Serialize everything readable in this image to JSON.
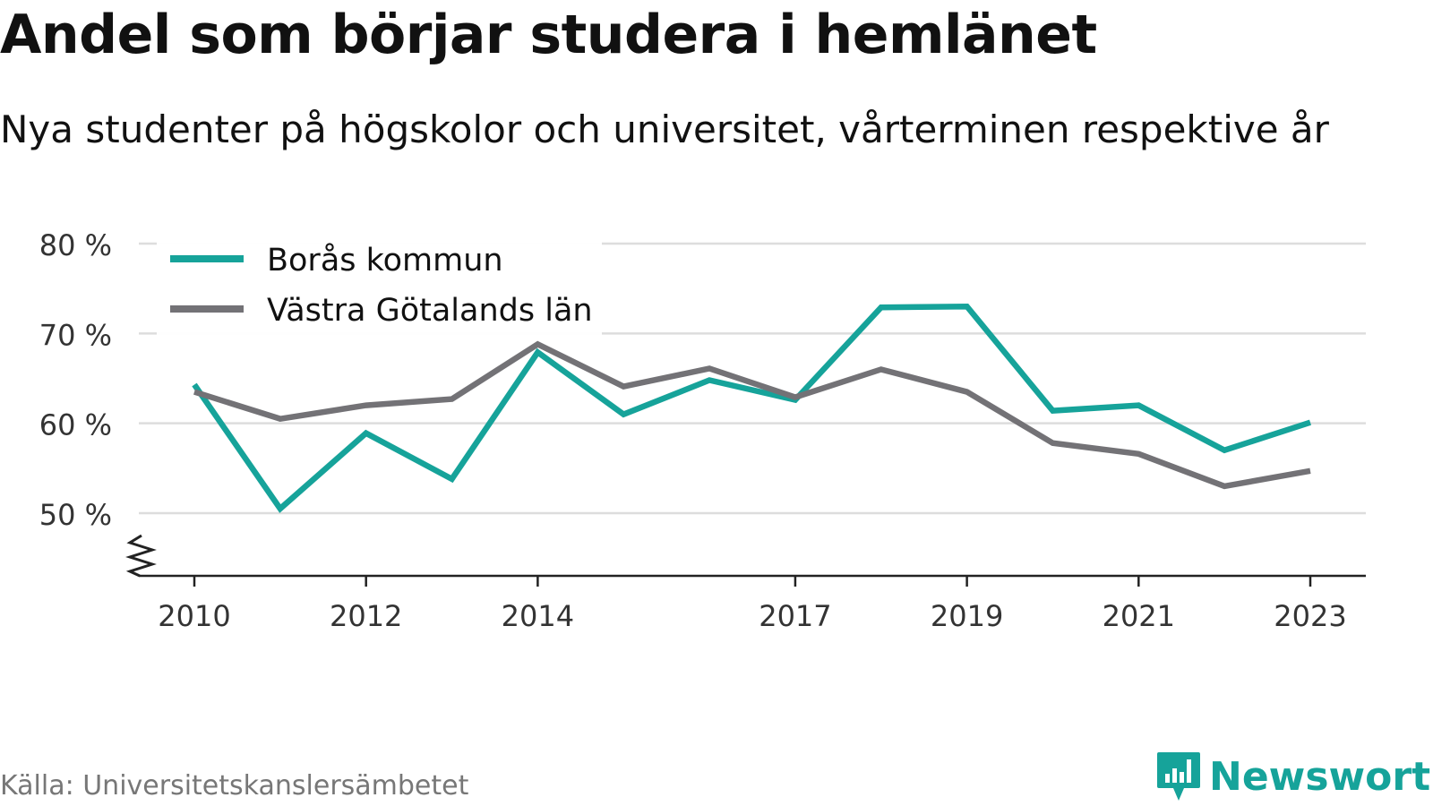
{
  "title": "Andel som börjar studera i hemlänet",
  "subtitle": "Nya studenter på högskolor och universitet, vårterminen respektive år",
  "source": "Källa: Universitetskanslersämbetet",
  "logo": {
    "text": "Newsworthy",
    "icon": "bar-chart-speech-bubble-icon",
    "color": "#16a39a"
  },
  "chart_data": {
    "type": "line",
    "x": [
      2010,
      2011,
      2012,
      2013,
      2014,
      2015,
      2016,
      2017,
      2018,
      2019,
      2020,
      2021,
      2022,
      2023
    ],
    "x_tick_labels": [
      "2010",
      "2012",
      "2014",
      "2017",
      "2019",
      "2021",
      "2023"
    ],
    "y_tick_labels": [
      "50 %",
      "60 %",
      "70 %",
      "80 %"
    ],
    "y_ticks": [
      50,
      60,
      70,
      80
    ],
    "ylim": [
      43,
      80
    ],
    "y_axis_break": true,
    "grid": true,
    "legend_position": "top-left",
    "series": [
      {
        "name": "Borås kommun",
        "color": "#16a39a",
        "values": [
          64.3,
          50.5,
          58.9,
          53.8,
          67.9,
          61.0,
          64.8,
          62.6,
          72.9,
          73.0,
          61.4,
          62.0,
          57.0,
          60.1
        ]
      },
      {
        "name": "Västra Götalands län",
        "color": "#737276",
        "values": [
          63.5,
          60.5,
          62.0,
          62.7,
          68.8,
          64.1,
          66.1,
          62.9,
          66.0,
          63.5,
          57.8,
          56.6,
          53.0,
          54.7
        ]
      }
    ]
  }
}
